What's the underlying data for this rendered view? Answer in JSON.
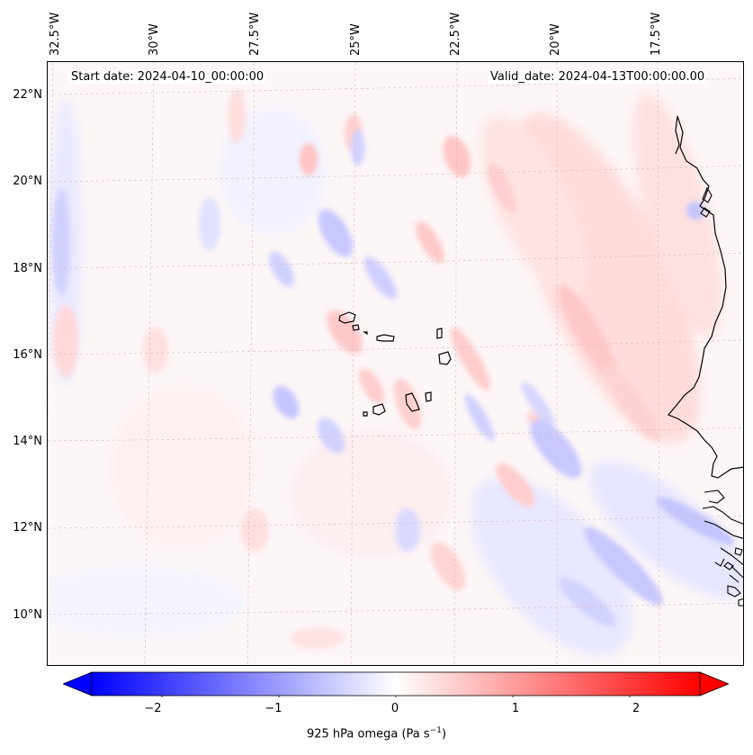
{
  "header": {
    "start_date": "Start date: 2024-04-10_00:00:00",
    "valid_date": "Valid_date: 2024-04-13T00:00:00.00"
  },
  "map": {
    "lat_labels": [
      "22°N",
      "20°N",
      "18°N",
      "16°N",
      "14°N",
      "12°N",
      "10°N"
    ],
    "lon_labels": [
      "32.5°W",
      "30°W",
      "27.5°W",
      "25°W",
      "22.5°W",
      "20°W",
      "17.5°W"
    ],
    "features": [
      "coastline-west-africa",
      "cape-verde-islands"
    ]
  },
  "colorbar": {
    "ticks": [
      "−2",
      "−1",
      "0",
      "1",
      "2"
    ],
    "tick_values": [
      -2,
      -1,
      0,
      1,
      2
    ],
    "range": [
      -2.6,
      2.6
    ],
    "title_main": "925 hPa omega (Pa s",
    "title_exp": "−1",
    "title_end": ")",
    "colors": {
      "negative": "#0000ff",
      "zero": "#ffffff",
      "positive": "#ff0000"
    }
  }
}
